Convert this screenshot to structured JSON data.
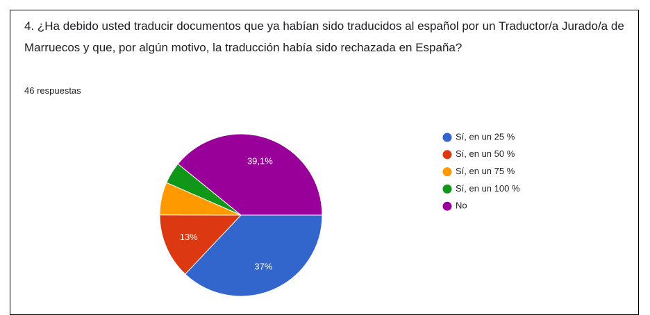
{
  "chart_data": {
    "type": "pie",
    "title": "4. ¿Ha debido usted traducir documentos que ya habían sido traducidos al español por un Traductor/a Jurado/a de Marruecos y que, por algún motivo, la traducción había sido rechazada en España?",
    "subtitle": "46 respuestas",
    "categories": [
      "Sí, en un 25 %",
      "Sí, en un 50 %",
      "Sí, en un 75 %",
      "Sí, en un 100 %",
      "No"
    ],
    "values": [
      37,
      13,
      6.5,
      4.3,
      39.1
    ],
    "value_labels": [
      "37%",
      "13%",
      null,
      null,
      "39,1%"
    ],
    "colors": [
      "#3366cc",
      "#dc3912",
      "#ff9900",
      "#109618",
      "#990099"
    ],
    "legend": "right"
  }
}
